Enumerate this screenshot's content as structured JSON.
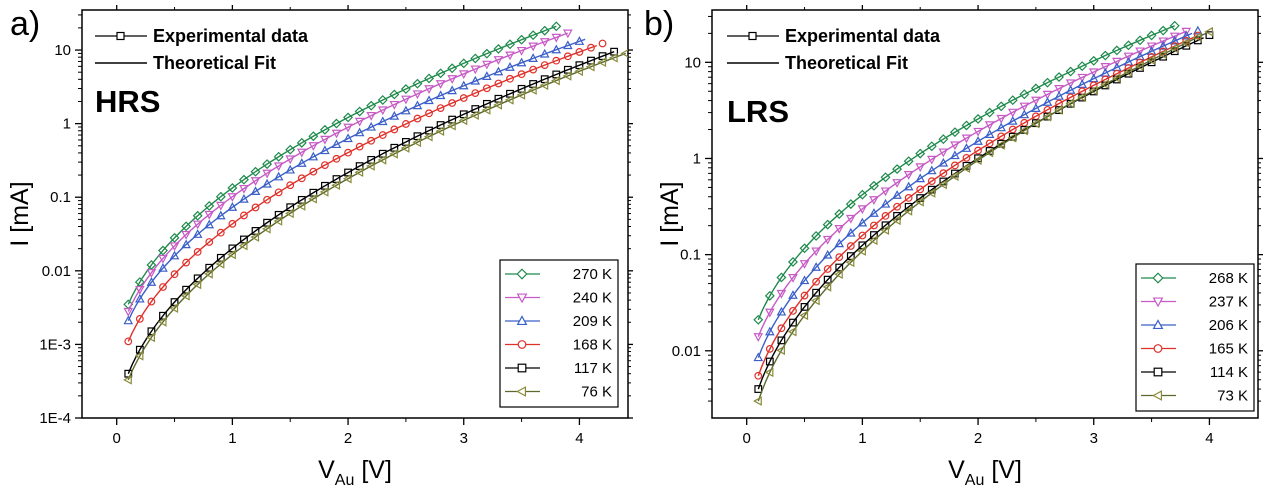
{
  "chart_data": [
    {
      "type": "scatter",
      "panel_label": "a)",
      "state_label": "HRS",
      "xlabel": {
        "main": "V",
        "sub": "Au",
        "unit": " [V]"
      },
      "ylabel": "I [mA]",
      "y_scale": "log",
      "xlim": [
        -0.3,
        4.42
      ],
      "ylim": [
        0.0001,
        35
      ],
      "x_ticks": [
        0,
        1,
        2,
        3,
        4
      ],
      "x_tick_labels": [
        "0",
        "1",
        "2",
        "3",
        "4"
      ],
      "y_ticks": [
        0.0001,
        0.001,
        0.01,
        0.1,
        1,
        10
      ],
      "y_tick_labels": [
        "1E-4",
        "1E-3",
        "0.01",
        "0.1",
        "1",
        "10"
      ],
      "grid": false,
      "key": [
        "Experimental data",
        "Theoretical Fit"
      ],
      "legend_position": "bottom-right",
      "series": [
        {
          "name": "270 K",
          "marker": "diamond",
          "color": "#1f8a4c",
          "fit_color": "#1f8a4c",
          "v_max": 3.8,
          "i_start": 0.0035,
          "i_end": 21
        },
        {
          "name": "240 K",
          "marker": "triangle-down",
          "color": "#c65bc6",
          "fit_color": "#c65bc6",
          "v_max": 3.9,
          "i_start": 0.0028,
          "i_end": 17
        },
        {
          "name": "209 K",
          "marker": "triangle-up",
          "color": "#3a5fc8",
          "fit_color": "#3a5fc8",
          "v_max": 4.05,
          "i_start": 0.0021,
          "i_end": 14
        },
        {
          "name": "168 K",
          "marker": "circle",
          "color": "#e0302a",
          "fit_color": "#e0302a",
          "v_max": 4.15,
          "i_start": 0.0011,
          "i_end": 11.5
        },
        {
          "name": "117 K",
          "marker": "square",
          "color": "#000000",
          "fit_color": "#000000",
          "v_max": 4.3,
          "i_start": 0.0004,
          "i_end": 9.5
        },
        {
          "name": " 76 K",
          "marker": "triangle-left",
          "color": "#8a8a3a",
          "fit_color": "#5a6a2a",
          "v_max": 4.4,
          "i_start": 0.00033,
          "i_end": 9
        }
      ]
    },
    {
      "type": "scatter",
      "panel_label": "b)",
      "state_label": "LRS",
      "xlabel": {
        "main": "V",
        "sub": "Au",
        "unit": " [V]"
      },
      "ylabel": "I [mA]",
      "y_scale": "log",
      "xlim": [
        -0.3,
        4.42
      ],
      "ylim": [
        0.002,
        35
      ],
      "x_ticks": [
        0,
        1,
        2,
        3,
        4
      ],
      "x_tick_labels": [
        "0",
        "1",
        "2",
        "3",
        "4"
      ],
      "y_ticks": [
        0.01,
        0.1,
        1,
        10
      ],
      "y_tick_labels": [
        "0.01",
        "0.1",
        "1",
        "10"
      ],
      "grid": false,
      "key": [
        "Experimental data",
        "Theoretical Fit"
      ],
      "legend_position": "bottom-right",
      "series": [
        {
          "name": "268 K",
          "marker": "diamond",
          "color": "#1f8a4c",
          "fit_color": "#1f8a4c",
          "v_max": 3.7,
          "i_start": 0.021,
          "i_end": 24
        },
        {
          "name": "237 K",
          "marker": "triangle-down",
          "color": "#c65bc6",
          "fit_color": "#c65bc6",
          "v_max": 3.8,
          "i_start": 0.014,
          "i_end": 21
        },
        {
          "name": "206 K",
          "marker": "triangle-up",
          "color": "#3a5fc8",
          "fit_color": "#3a5fc8",
          "v_max": 3.85,
          "i_start": 0.0085,
          "i_end": 20
        },
        {
          "name": "165 K",
          "marker": "circle",
          "color": "#e0302a",
          "fit_color": "#e0302a",
          "v_max": 3.9,
          "i_start": 0.0055,
          "i_end": 19
        },
        {
          "name": "114 K",
          "marker": "square",
          "color": "#000000",
          "fit_color": "#000000",
          "v_max": 3.95,
          "i_start": 0.004,
          "i_end": 18
        },
        {
          "name": " 73 K",
          "marker": "triangle-left",
          "color": "#8a8a3a",
          "fit_color": "#5a6a2a",
          "v_max": 3.97,
          "i_start": 0.003,
          "i_end": 20
        }
      ]
    }
  ]
}
